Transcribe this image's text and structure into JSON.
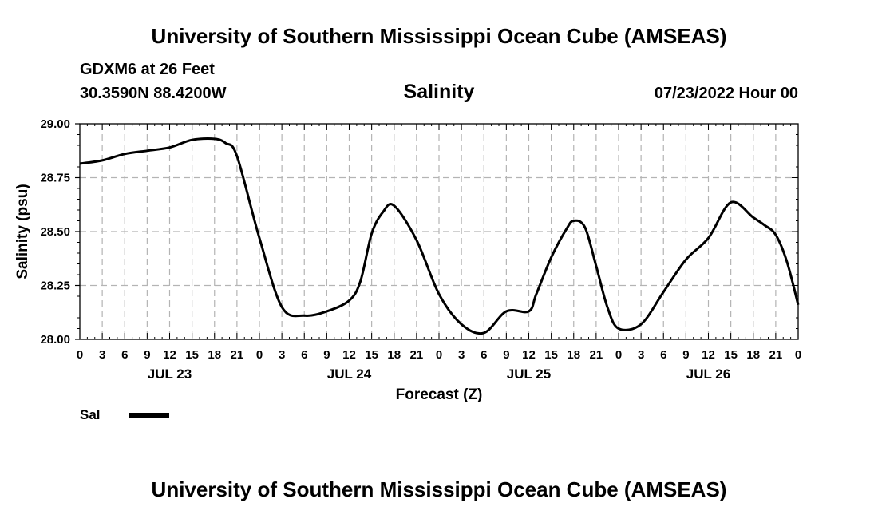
{
  "header": {
    "title": "University of Southern Mississippi Ocean Cube (AMSEAS)",
    "station": "GDXM6 at 26 Feet",
    "coords": "30.3590N  88.4200W",
    "date": "07/23/2022 Hour 00"
  },
  "footer": {
    "title": "University of Southern Mississippi Ocean Cube (AMSEAS)"
  },
  "chart_data": {
    "type": "line",
    "title": "Salinity",
    "xlabel": "Forecast (Z)",
    "ylabel": "Salinity (psu)",
    "xlim": [
      0,
      96
    ],
    "ylim": [
      28.0,
      29.0
    ],
    "grid": true,
    "x_ticks": [
      0,
      3,
      6,
      9,
      12,
      15,
      18,
      21,
      24,
      27,
      30,
      33,
      36,
      39,
      42,
      45,
      48,
      51,
      54,
      57,
      60,
      63,
      66,
      69,
      72,
      75,
      78,
      81,
      84,
      87,
      90,
      93,
      96
    ],
    "x_tick_labels": [
      "0",
      "3",
      "6",
      "9",
      "12",
      "15",
      "18",
      "21",
      "0",
      "3",
      "6",
      "9",
      "12",
      "15",
      "18",
      "21",
      "0",
      "3",
      "6",
      "9",
      "12",
      "15",
      "18",
      "21",
      "0",
      "3",
      "6",
      "9",
      "12",
      "15",
      "18",
      "21",
      "0"
    ],
    "date_labels": [
      {
        "x": 12,
        "label": "JUL 23"
      },
      {
        "x": 36,
        "label": "JUL 24"
      },
      {
        "x": 60,
        "label": "JUL 25"
      },
      {
        "x": 84,
        "label": "JUL 26"
      }
    ],
    "y_ticks": [
      28.0,
      28.25,
      28.5,
      28.75,
      29.0
    ],
    "y_tick_labels": [
      "28.00",
      "28.25",
      "28.50",
      "28.75",
      "29.00"
    ],
    "legend": {
      "position": "bottom-left",
      "label": "Sal"
    },
    "series": [
      {
        "name": "Sal",
        "color": "#000000",
        "x": [
          0,
          3,
          6,
          9,
          12,
          15,
          18,
          19.5,
          21,
          24,
          27,
          30,
          33,
          36,
          37.5,
          39,
          40.5,
          42,
          45,
          48,
          51,
          54,
          57,
          60,
          61,
          63,
          65,
          66,
          67.5,
          69,
          70.5,
          72,
          75,
          78,
          81,
          84,
          87,
          90,
          91.5,
          93,
          94.5,
          96
        ],
        "y": [
          28.815,
          28.83,
          28.86,
          28.875,
          28.89,
          28.925,
          28.93,
          28.91,
          28.85,
          28.47,
          28.15,
          28.11,
          28.13,
          28.18,
          28.27,
          28.49,
          28.59,
          28.62,
          28.46,
          28.21,
          28.07,
          28.03,
          28.13,
          28.13,
          28.21,
          28.38,
          28.51,
          28.55,
          28.52,
          28.34,
          28.15,
          28.05,
          28.07,
          28.22,
          28.37,
          28.47,
          28.635,
          28.565,
          28.53,
          28.485,
          28.36,
          28.16
        ]
      }
    ]
  }
}
